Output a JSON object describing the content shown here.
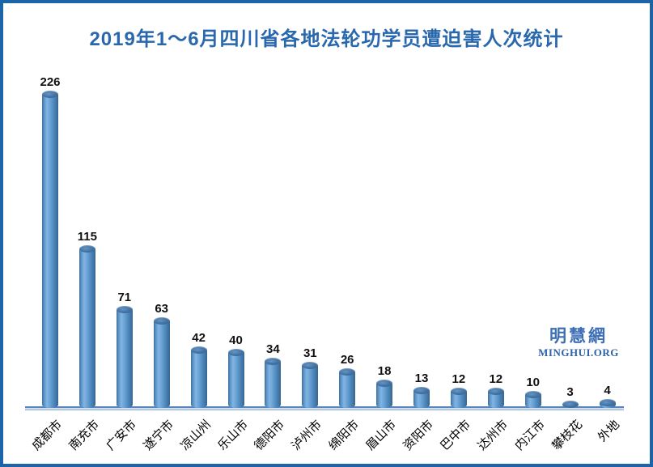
{
  "page": {
    "border_color": "#1c64a7",
    "title_color": "#2a68ae"
  },
  "watermark": {
    "cn": "明慧網",
    "en": "MINGHUI.ORG",
    "color": "#3e6fb5"
  },
  "chart_data": {
    "type": "bar",
    "style": "3d-cylinder",
    "title": "2019年1～6月四川省各地法轮功学员遭迫害人次统计",
    "categories": [
      "成都市",
      "南充市",
      "广安市",
      "遂宁市",
      "凉山州",
      "乐山市",
      "德阳市",
      "泸州市",
      "绵阳市",
      "眉山市",
      "资阳市",
      "巴中市",
      "达州市",
      "内江市",
      "攀枝花",
      "外地"
    ],
    "values": [
      226,
      115,
      71,
      63,
      42,
      40,
      34,
      31,
      26,
      18,
      13,
      12,
      12,
      10,
      3,
      4
    ],
    "xlabel": "",
    "ylabel": "",
    "ylim": [
      0,
      240
    ],
    "grid": false,
    "legend": false,
    "data_labels": true,
    "bar_color": "#5b9bd5",
    "label_color": "#111111",
    "xaxis_label_rotation": -45
  }
}
